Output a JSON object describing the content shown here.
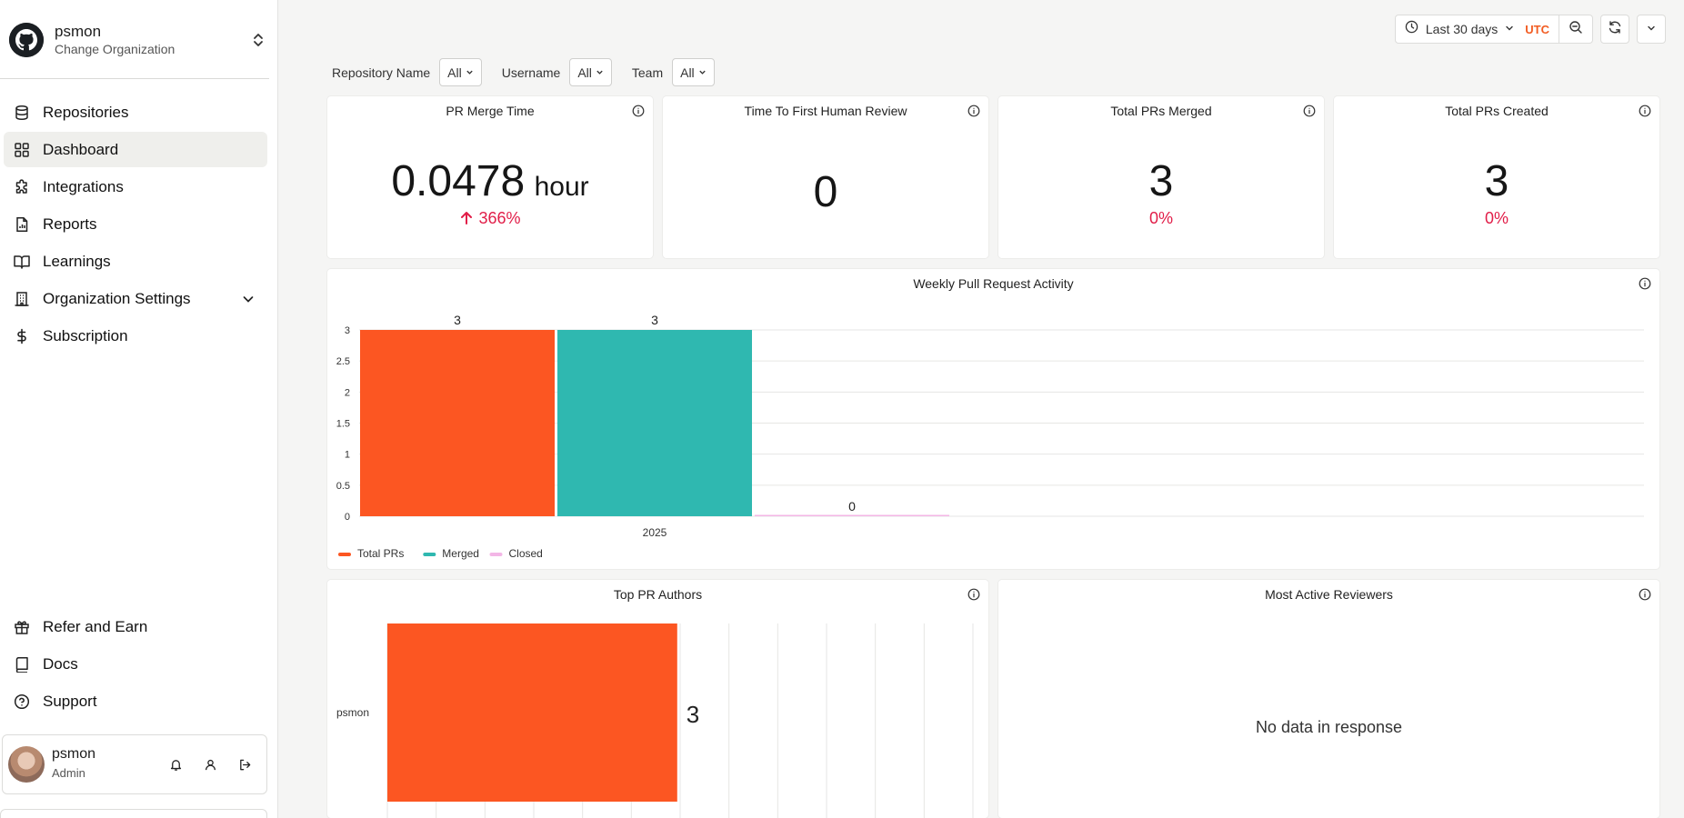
{
  "org": {
    "name": "psmon",
    "subtitle": "Change Organization"
  },
  "nav": {
    "items": [
      {
        "label": "Repositories",
        "icon": "database-icon"
      },
      {
        "label": "Dashboard",
        "icon": "grid-icon",
        "active": true
      },
      {
        "label": "Integrations",
        "icon": "puzzle-icon"
      },
      {
        "label": "Reports",
        "icon": "report-icon"
      },
      {
        "label": "Learnings",
        "icon": "book-open-icon"
      },
      {
        "label": "Organization Settings",
        "icon": "building-icon",
        "expandable": true
      },
      {
        "label": "Subscription",
        "icon": "dollar-icon"
      }
    ],
    "bottom": [
      {
        "label": "Refer and Earn",
        "icon": "gift-icon"
      },
      {
        "label": "Docs",
        "icon": "book-icon"
      },
      {
        "label": "Support",
        "icon": "help-icon"
      }
    ]
  },
  "user": {
    "name": "psmon",
    "role": "Admin"
  },
  "topbar": {
    "date_range": "Last 30 days",
    "timezone": "UTC"
  },
  "filters": [
    {
      "label": "Repository Name",
      "value": "All"
    },
    {
      "label": "Username",
      "value": "All"
    },
    {
      "label": "Team",
      "value": "All"
    }
  ],
  "metrics": {
    "merge_time": {
      "title": "PR Merge Time",
      "value": "0.0478",
      "unit": "hour",
      "delta": "366%",
      "direction": "up"
    },
    "first_review": {
      "title": "Time To First Human Review",
      "value": "0"
    },
    "total_merged": {
      "title": "Total PRs Merged",
      "value": "3",
      "delta": "0%"
    },
    "total_created": {
      "title": "Total PRs Created",
      "value": "3",
      "delta": "0%"
    }
  },
  "colors": {
    "total": "#fc5622",
    "merged": "#2fb8b0",
    "closed": "#f3b6e6",
    "accent": "#f25c22",
    "negative": "#e11d48"
  },
  "chart_data": [
    {
      "type": "bar",
      "title": "Weekly Pull Request Activity",
      "categories": [
        "2025"
      ],
      "series": [
        {
          "name": "Total PRs",
          "values": [
            3
          ]
        },
        {
          "name": "Merged",
          "values": [
            3
          ]
        },
        {
          "name": "Closed",
          "values": [
            0
          ]
        }
      ],
      "ylim": [
        0,
        3
      ],
      "yticks": [
        "0",
        "0.5",
        "1",
        "1.5",
        "2",
        "2.5",
        "3"
      ],
      "legend": "bottom-left",
      "grid": true
    },
    {
      "type": "bar",
      "orientation": "horizontal",
      "title": "Top PR Authors",
      "categories": [
        "psmon"
      ],
      "values": [
        3
      ],
      "grid": true
    }
  ],
  "reviewers": {
    "title": "Most Active Reviewers",
    "empty_text": "No data in response"
  }
}
